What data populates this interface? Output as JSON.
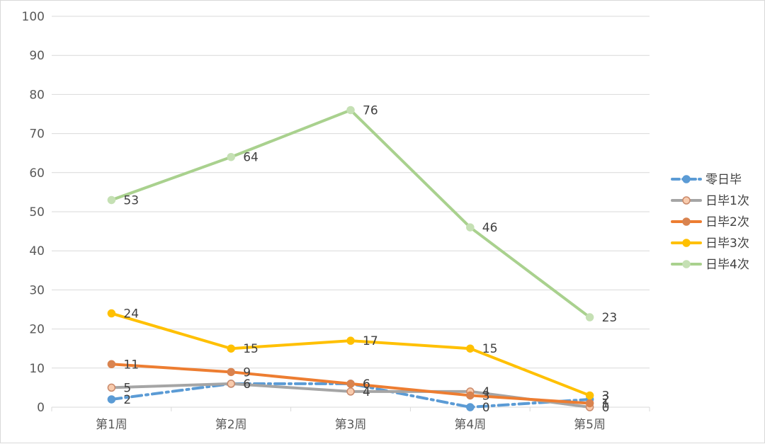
{
  "chart_data": {
    "type": "line",
    "categories": [
      "第1周",
      "第2周",
      "第3周",
      "第4周",
      "第5周"
    ],
    "ylim": [
      0,
      100
    ],
    "yticks": [
      0,
      10,
      20,
      30,
      40,
      50,
      60,
      70,
      80,
      90,
      100
    ],
    "grid": true,
    "legend_position": "right",
    "series": [
      {
        "name": "零日毕",
        "values": [
          2,
          6,
          6,
          0,
          2
        ],
        "labels": [
          "2",
          "6",
          "6",
          "0",
          "2"
        ],
        "color": "#5B9BD5",
        "line_style": "dash-dot",
        "marker_fill": "#5B9BD5",
        "marker_stroke": "#5B9BD5"
      },
      {
        "name": "日毕1次",
        "values": [
          5,
          6,
          4,
          4,
          0
        ],
        "labels": [
          "5",
          "6",
          "4",
          "4",
          "0"
        ],
        "color": "#A5A5A5",
        "line_style": "solid",
        "marker_fill": "#F8CBAD",
        "marker_stroke": "#C9896A"
      },
      {
        "name": "日毕2次",
        "values": [
          11,
          9,
          6,
          3,
          1
        ],
        "labels": [
          "11",
          "9",
          "6",
          "3",
          "1"
        ],
        "color": "#ED7D31",
        "line_style": "solid",
        "marker_fill": "#D9834F",
        "marker_stroke": "#D9834F"
      },
      {
        "name": "日毕3次",
        "values": [
          24,
          15,
          17,
          15,
          3
        ],
        "labels": [
          "24",
          "15",
          "17",
          "15",
          "3"
        ],
        "color": "#FFC000",
        "line_style": "solid",
        "marker_fill": "#FFC000",
        "marker_stroke": "#FFC000"
      },
      {
        "name": "日毕4次",
        "values": [
          53,
          64,
          76,
          46,
          23
        ],
        "labels": [
          "53",
          "64",
          "76",
          "46",
          "23"
        ],
        "color": "#A9D18E",
        "line_style": "solid",
        "marker_fill": "#C5E0B4",
        "marker_stroke": "#C5E0B4"
      }
    ]
  }
}
